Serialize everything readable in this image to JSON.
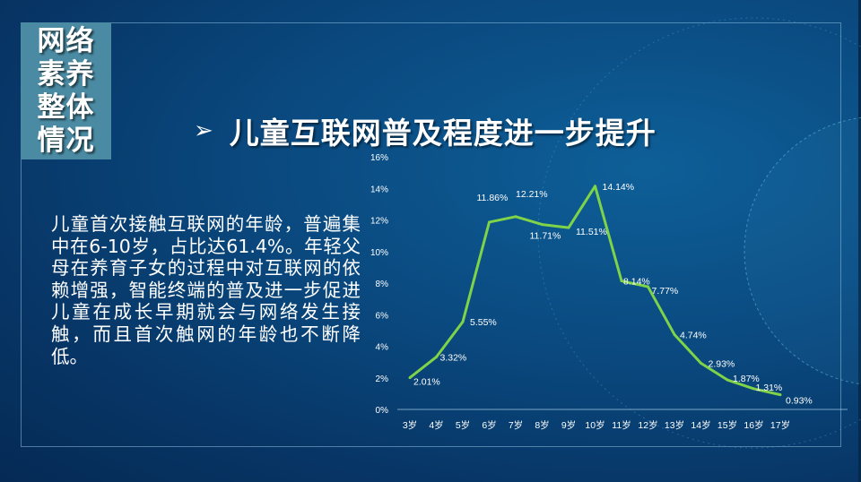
{
  "sidebox": {
    "lines": [
      "网络",
      "素养",
      "整体",
      "情况"
    ]
  },
  "title": {
    "bullet_icon": "arrowhead-icon",
    "text": "儿童互联网普及程度进一步提升"
  },
  "body": {
    "text": "儿童首次接触互联网的年龄，普遍集中在6-10岁，占比达61.4%。年轻父母在养育子女的过程中对互联网的依赖增强，智能终端的普及进一步促进儿童在成长早期就会与网络发生接触，而且首次触网的年龄也不断降低。"
  },
  "colors": {
    "line": "#7ed348",
    "accent_box": "#4a8ba3"
  },
  "chart_data": {
    "type": "line",
    "categories": [
      "3岁",
      "4岁",
      "5岁",
      "6岁",
      "7岁",
      "8岁",
      "9岁",
      "10岁",
      "11岁",
      "12岁",
      "13岁",
      "14岁",
      "15岁",
      "16岁",
      "17岁"
    ],
    "values": [
      2.01,
      3.32,
      5.55,
      11.86,
      12.21,
      11.71,
      11.51,
      14.14,
      8.14,
      7.77,
      4.74,
      2.93,
      1.87,
      1.31,
      0.93
    ],
    "data_labels": [
      "2.01%",
      "3.32%",
      "5.55%",
      "11.86%",
      "12.21%",
      "11.71%",
      "11.51%",
      "14.14%",
      "8.14%",
      "7.77%",
      "4.74%",
      "2.93%",
      "1.87%",
      "1.31%",
      "0.93%"
    ],
    "yticks": [
      "0%",
      "2%",
      "4%",
      "6%",
      "8%",
      "10%",
      "12%",
      "14%",
      "16%"
    ],
    "ylim": [
      0,
      16
    ],
    "grid": false,
    "legend": "none"
  }
}
